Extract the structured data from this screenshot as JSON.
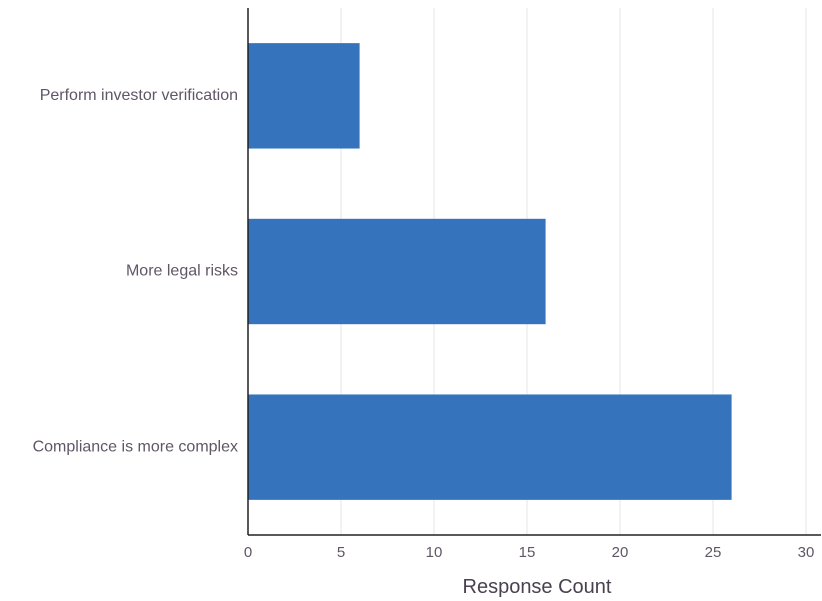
{
  "chart_data": {
    "type": "bar",
    "orientation": "horizontal",
    "categories": [
      "Perform investor verification",
      "More legal risks",
      "Compliance is more complex"
    ],
    "values": [
      6,
      16,
      26
    ],
    "title": "",
    "xlabel": "Response Count",
    "ylabel": "",
    "xlim": [
      0,
      30
    ],
    "x_ticks": [
      "0",
      "5",
      "10",
      "15",
      "20",
      "25",
      "30"
    ],
    "grid": "vertical",
    "colors": {
      "bar": "#3574bd",
      "grid": "#e6e6e6",
      "axis": "#222222"
    }
  }
}
